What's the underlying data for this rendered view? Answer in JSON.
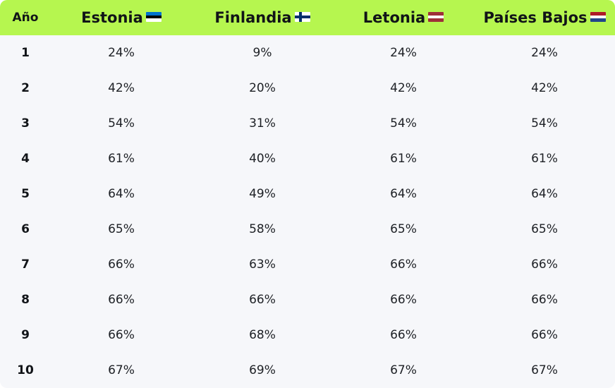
{
  "table": {
    "headers": {
      "year": "Año",
      "countries": [
        {
          "name": "Estonia",
          "flag_icon": "estonia-flag-icon",
          "flag_colors": [
            "#0072ce",
            "#000000",
            "#ffffff"
          ],
          "flag_stripes": "horizontal"
        },
        {
          "name": "Finlandia",
          "flag_icon": "finland-flag-icon",
          "flag_colors": [
            "#ffffff",
            "#002f6c"
          ],
          "flag_stripes": "cross"
        },
        {
          "name": "Letonia",
          "flag_icon": "latvia-flag-icon",
          "flag_colors": [
            "#9e3039",
            "#ffffff",
            "#9e3039"
          ],
          "flag_stripes": "horizontal"
        },
        {
          "name": "Países Bajos",
          "flag_icon": "netherlands-flag-icon",
          "flag_colors": [
            "#ae1c28",
            "#ffffff",
            "#21468b"
          ],
          "flag_stripes": "horizontal"
        }
      ]
    },
    "rows": [
      {
        "year": "1",
        "values": [
          "24%",
          "9%",
          "24%",
          "24%"
        ]
      },
      {
        "year": "2",
        "values": [
          "42%",
          "20%",
          "42%",
          "42%"
        ]
      },
      {
        "year": "3",
        "values": [
          "54%",
          "31%",
          "54%",
          "54%"
        ]
      },
      {
        "year": "4",
        "values": [
          "61%",
          "40%",
          "61%",
          "61%"
        ]
      },
      {
        "year": "5",
        "values": [
          "64%",
          "49%",
          "64%",
          "64%"
        ]
      },
      {
        "year": "6",
        "values": [
          "65%",
          "58%",
          "65%",
          "65%"
        ]
      },
      {
        "year": "7",
        "values": [
          "66%",
          "63%",
          "66%",
          "66%"
        ]
      },
      {
        "year": "8",
        "values": [
          "66%",
          "66%",
          "66%",
          "66%"
        ]
      },
      {
        "year": "9",
        "values": [
          "66%",
          "68%",
          "66%",
          "66%"
        ]
      },
      {
        "year": "10",
        "values": [
          "67%",
          "69%",
          "67%",
          "67%"
        ]
      }
    ]
  },
  "colors": {
    "header_bg": "#b6f64f",
    "body_bg": "#f6f7fa",
    "text": "#111418"
  }
}
